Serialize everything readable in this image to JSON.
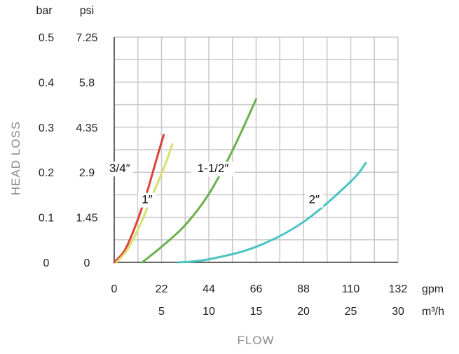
{
  "chart_data": {
    "type": "line",
    "xlabel": "FLOW",
    "ylabel": "HEAD LOSS",
    "x_primary_unit": "gpm",
    "x_secondary_unit": "m³/h",
    "y_primary_unit": "psi",
    "y_secondary_unit": "bar",
    "xlim": [
      0,
      132
    ],
    "ylim": [
      0,
      7.25
    ],
    "x_ticks_gpm": [
      "0",
      "22",
      "44",
      "66",
      "88",
      "110",
      "132"
    ],
    "x_ticks_m3h": [
      "5",
      "10",
      "15",
      "20",
      "25",
      "30"
    ],
    "y_ticks_psi": [
      "0",
      "1.45",
      "2.9",
      "4.35",
      "5.8",
      "7.25"
    ],
    "y_ticks_bar": [
      "0",
      "0.1",
      "0.2",
      "0.3",
      "0.4",
      "0.5"
    ],
    "grid": true,
    "series": [
      {
        "name": "3/4″",
        "color": "#e0403a",
        "x": [
          0,
          5,
          10,
          15,
          20,
          23
        ],
        "y": [
          0,
          0.4,
          1.2,
          2.2,
          3.4,
          4.1
        ]
      },
      {
        "name": "1″",
        "color": "#d8e070",
        "x": [
          1,
          6,
          12,
          18,
          24,
          27
        ],
        "y": [
          0,
          0.4,
          1.2,
          2.2,
          3.2,
          3.8
        ]
      },
      {
        "name": "1-1/2″",
        "color": "#6ab04c",
        "x": [
          13,
          22,
          33,
          44,
          55,
          66
        ],
        "y": [
          0,
          0.5,
          1.2,
          2.2,
          3.6,
          5.25
        ]
      },
      {
        "name": "2″",
        "color": "#4cc4c4",
        "x": [
          30,
          44,
          66,
          88,
          110,
          117
        ],
        "y": [
          0,
          0.1,
          0.5,
          1.3,
          2.6,
          3.2
        ]
      }
    ]
  }
}
